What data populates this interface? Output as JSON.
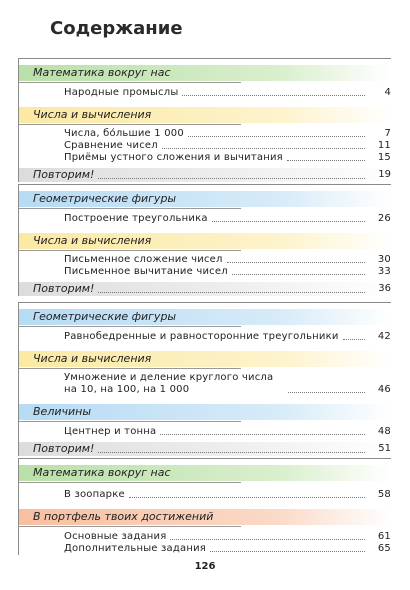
{
  "title": "Содержание",
  "page_number": "126",
  "colors": {
    "green": "#b9e0a8",
    "yellow": "#fbe9a3",
    "blue": "#b6dbf4",
    "orange": "#f7bfa0",
    "gray": "#d8d8d8"
  },
  "blocks": [
    {
      "sections": [
        {
          "label": "Математика вокруг нас",
          "color": "green",
          "entries": [
            {
              "text": "Народные промыслы",
              "page": "4"
            }
          ]
        },
        {
          "label": "Числа и вычисления",
          "color": "yellow",
          "entries": [
            {
              "text": "Числа, бо́льшие 1 000",
              "page": "7"
            },
            {
              "text": "Сравнение чисел",
              "page": "11"
            },
            {
              "text": "Приёмы устного сложения и вычитания",
              "page": "15"
            }
          ]
        }
      ],
      "review": {
        "label": "Повторим!",
        "page": "19"
      }
    },
    {
      "sections": [
        {
          "label": "Геометрические фигуры",
          "color": "blue",
          "entries": [
            {
              "text": "Построение треугольника",
              "page": "26"
            }
          ]
        },
        {
          "label": "Числа и вычисления",
          "color": "yellow",
          "entries": [
            {
              "text": "Письменное сложение чисел",
              "page": "30"
            },
            {
              "text": "Письменное вычитание чисел",
              "page": "33"
            }
          ]
        }
      ],
      "review": {
        "label": "Повторим!",
        "page": "36"
      }
    },
    {
      "sections": [
        {
          "label": "Геометрические фигуры",
          "color": "blue",
          "entries": [
            {
              "text": "Равнобедренные и равносторонние треугольники",
              "page": "42"
            }
          ]
        },
        {
          "label": "Числа и вычисления",
          "color": "yellow",
          "entries": [
            {
              "text": "Умножение и деление круглого числа на 10, на 100, на 1 000",
              "page": "46"
            }
          ]
        },
        {
          "label": "Величины",
          "color": "blue",
          "entries": [
            {
              "text": "Центнер и тонна",
              "page": "48"
            }
          ]
        }
      ],
      "review": {
        "label": "Повторим!",
        "page": "51"
      }
    },
    {
      "sections": [
        {
          "label": "Математика вокруг нас",
          "color": "green",
          "entries": [
            {
              "text": "В зоопарке",
              "page": "58"
            }
          ]
        },
        {
          "label": "В портфель твоих достижений",
          "color": "orange",
          "entries": [
            {
              "text": "Основные задания",
              "page": "61"
            },
            {
              "text": "Дополнительные задания",
              "page": "65"
            }
          ]
        }
      ]
    }
  ]
}
